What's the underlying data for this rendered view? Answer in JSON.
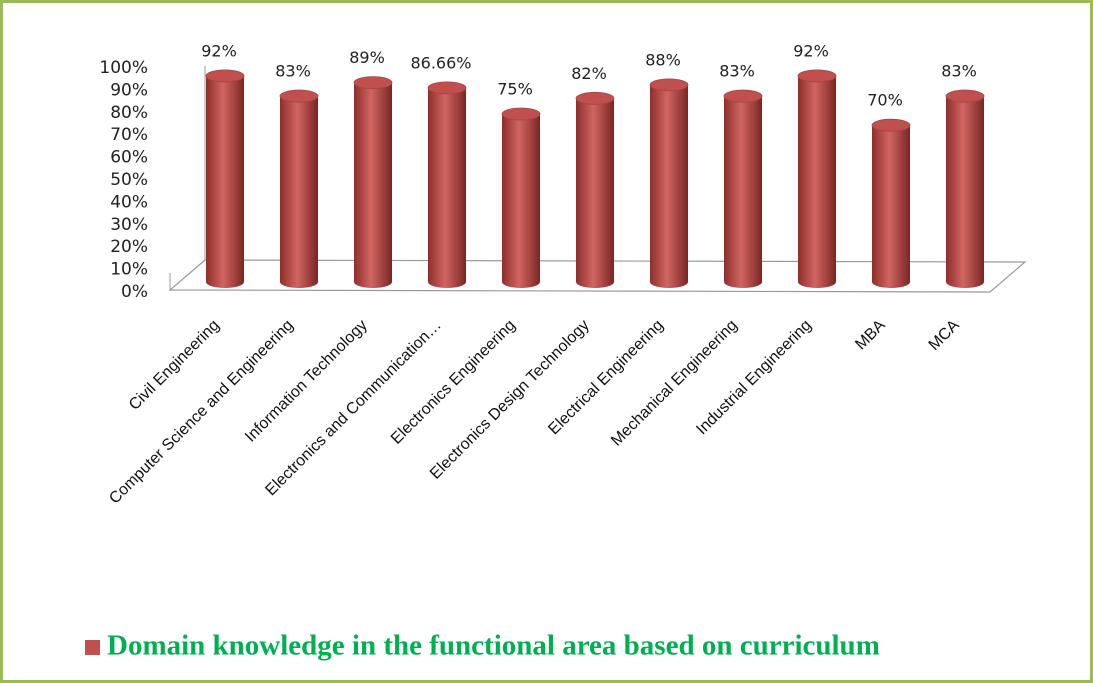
{
  "chart_data": {
    "type": "bar",
    "categories": [
      "Civil Engineering",
      "Computer Science and Engineering",
      "Information Technology",
      "Electronics and Communication…",
      "Electronics Engineering",
      "Electronics Design Technology",
      "Electrical Engineering",
      "Mechanical Engineering",
      "Industrial Engineering",
      "MBA",
      "MCA"
    ],
    "series": [
      {
        "name": "Domain knowledge in the functional area based on curriculum",
        "color": "#c0504d",
        "values": [
          92,
          83,
          89,
          86.66,
          75,
          82,
          88,
          83,
          92,
          70,
          83
        ],
        "value_labels": [
          "92%",
          "83%",
          "89%",
          "86.66%",
          "75%",
          "82%",
          "88%",
          "83%",
          "92%",
          "70%",
          "83%"
        ]
      }
    ],
    "ylim": [
      0,
      100
    ],
    "yticks": [
      {
        "value": 0,
        "label": "0%"
      },
      {
        "value": 10,
        "label": "10%"
      },
      {
        "value": 20,
        "label": "20%"
      },
      {
        "value": 30,
        "label": "30%"
      },
      {
        "value": 40,
        "label": "40%"
      },
      {
        "value": 50,
        "label": "50%"
      },
      {
        "value": 60,
        "label": "60%"
      },
      {
        "value": 70,
        "label": "70%"
      },
      {
        "value": 80,
        "label": "80%"
      },
      {
        "value": 90,
        "label": "90%"
      },
      {
        "value": 100,
        "label": "100%"
      }
    ],
    "legend": "bottom"
  }
}
